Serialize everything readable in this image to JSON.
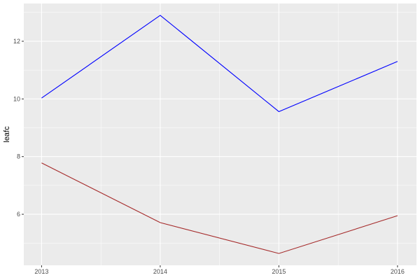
{
  "chart_data": {
    "type": "line",
    "xlabel": "",
    "ylabel": "leafc",
    "x": [
      2013,
      2014,
      2015,
      2016
    ],
    "x_tick_labels": [
      "2013",
      "2014",
      "2015",
      "2016"
    ],
    "y_tick_labels": [
      "6",
      "8",
      "10",
      "12"
    ],
    "y_ticks": [
      6,
      8,
      10,
      12
    ],
    "xlim": [
      2012.85,
      2016.16
    ],
    "ylim": [
      4.23,
      13.31
    ],
    "grid": true,
    "series": [
      {
        "color": "#0000FF",
        "values": [
          10.03,
          12.9,
          9.56,
          11.3
        ]
      },
      {
        "color": "#A52A2A",
        "values": [
          7.78,
          5.71,
          4.64,
          5.95
        ]
      }
    ]
  }
}
